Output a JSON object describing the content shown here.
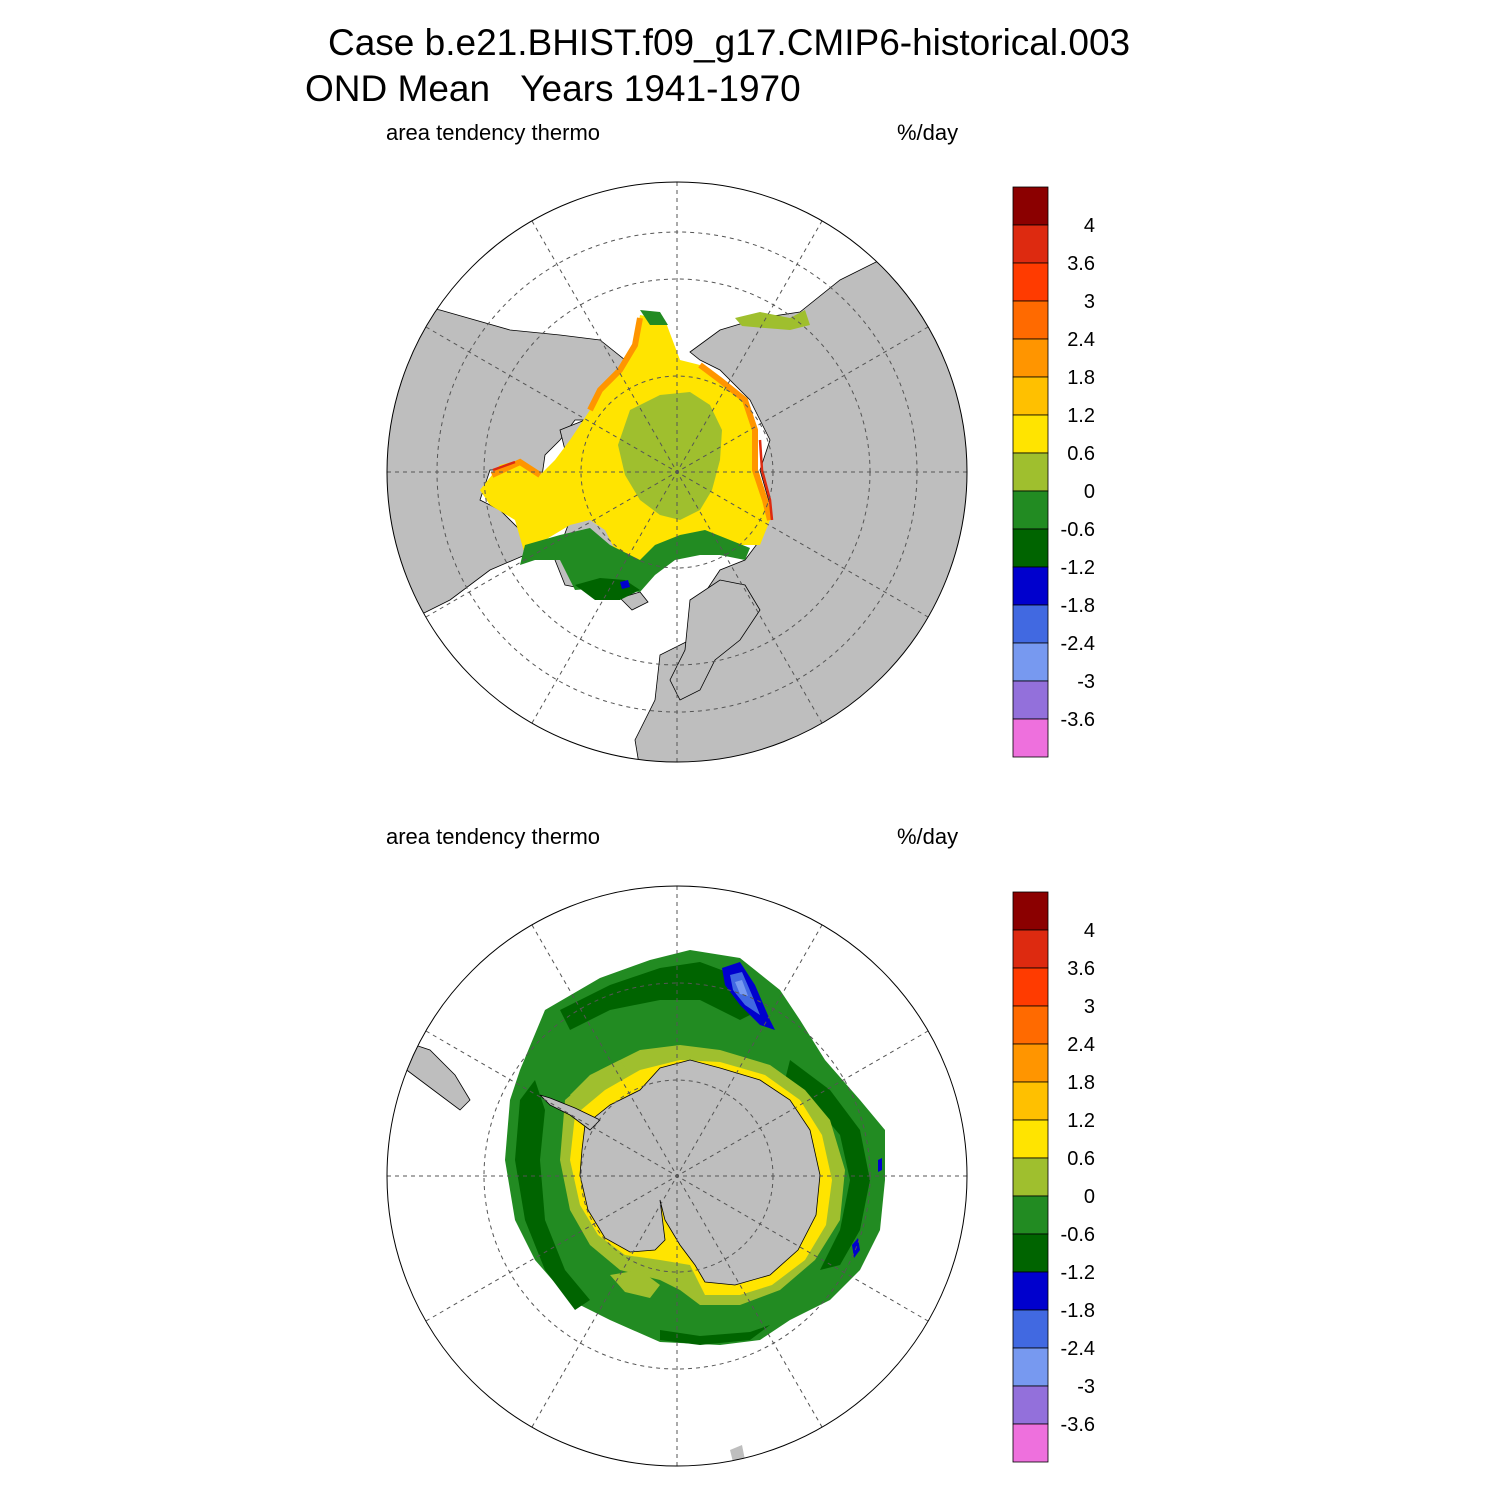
{
  "title": {
    "line1": "Case b.e21.BHIST.f09_g17.CMIP6-historical.003",
    "line2": "OND Mean   Years 1941-1970"
  },
  "panels": [
    {
      "name": "north",
      "left_label": "area tendency thermo",
      "right_label": "%/day"
    },
    {
      "name": "south",
      "left_label": "area tendency thermo",
      "right_label": "%/day"
    }
  ],
  "colorbar": {
    "tick_labels": [
      "4",
      "3.6",
      "3",
      "2.4",
      "1.8",
      "1.2",
      "0.6",
      "0",
      "-0.6",
      "-1.2",
      "-1.8",
      "-2.4",
      "-3",
      "-3.6"
    ],
    "colors_top_to_bottom": [
      "#8b0000",
      "#dd2a10",
      "#ff3b00",
      "#ff6a00",
      "#ff9500",
      "#ffc000",
      "#ffe400",
      "#9fbf2e",
      "#228b22",
      "#006400",
      "#0000cd",
      "#4169e1",
      "#7799f0",
      "#9370db",
      "#ee70dd"
    ]
  },
  "colors": {
    "land": "#bebebe",
    "ocean": "#ffffff",
    "grid": "#555555"
  }
}
